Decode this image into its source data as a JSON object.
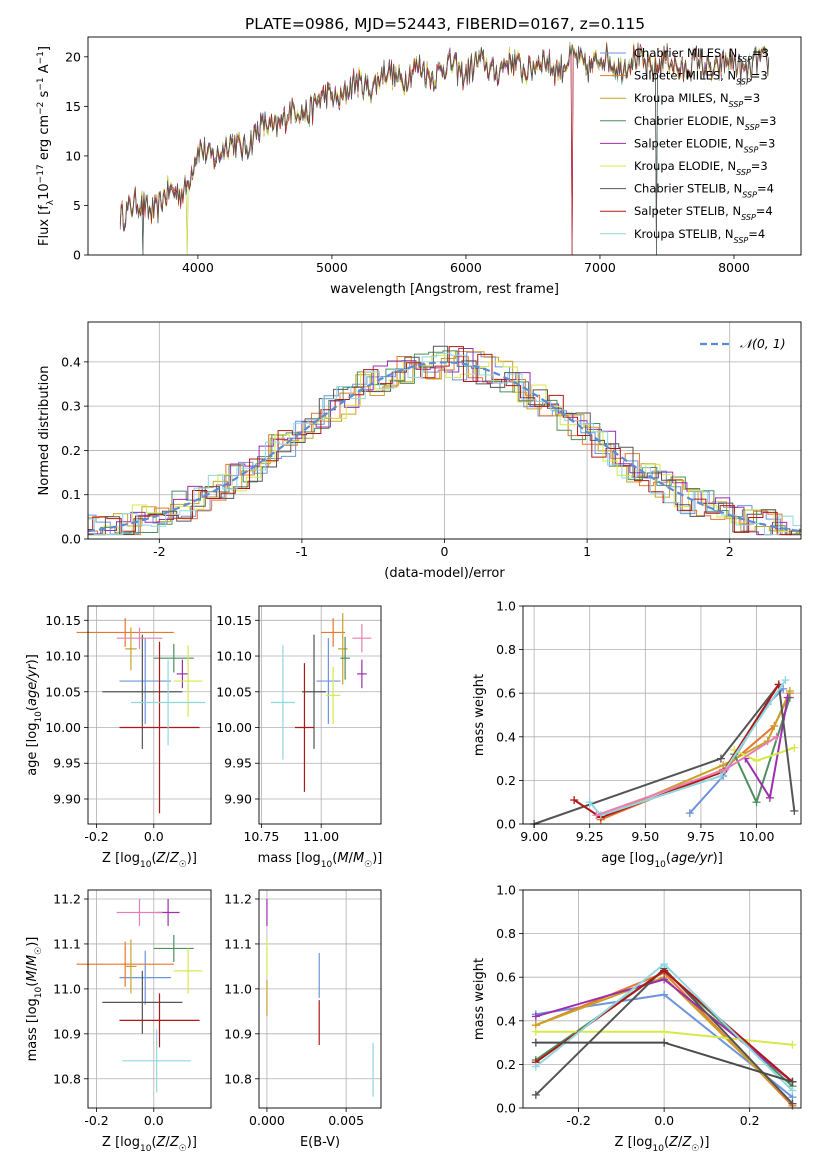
{
  "title": "PLATE=0986, MJD=52443, FIBERID=0167, z=0.115",
  "model_colors": [
    "#6f94dc",
    "#e8762d",
    "#c9a227",
    "#4f8f5f",
    "#9b2fae",
    "#d6e84a",
    "#555555",
    "#b01818",
    "#8fd8e0"
  ],
  "chart_data": [
    {
      "id": "spectrum",
      "type": "line",
      "title": "PLATE=0986, MJD=52443, FIBERID=0167, z=0.115",
      "xlabel": "wavelength [Angstrom, rest frame]",
      "ylabel": "Flux [f_λ 10⁻¹⁷ erg cm⁻² s⁻¹ A⁻¹]",
      "xlim": [
        3180,
        8500
      ],
      "ylim": [
        0,
        22
      ],
      "xticks": [
        4000,
        5000,
        6000,
        7000,
        8000
      ],
      "yticks": [
        0,
        5,
        10,
        15,
        20
      ],
      "grid": false,
      "legend": "top-right",
      "data_range": [
        3420,
        8260
      ],
      "continuum_shape": {
        "x": [
          3420,
          3700,
          3900,
          4000,
          4300,
          4600,
          5000,
          5400,
          5800,
          6200,
          6600,
          7000,
          7400,
          7800,
          8260
        ],
        "y": [
          4.5,
          5.0,
          7.0,
          10.0,
          11.0,
          13.5,
          16.0,
          18.0,
          18.7,
          19.0,
          19.2,
          19.5,
          19.3,
          19.0,
          19.2
        ]
      },
      "dropout_wavelengths": [
        3590,
        3920,
        6790,
        7420
      ],
      "series": [
        {
          "name": "Chabrier MILES, N_SSP=3",
          "main": "Chabrier MILES, N",
          "sub": "SSP",
          "suffix": "=3"
        },
        {
          "name": "Salpeter MILES, N_SSP=3",
          "main": "Salpeter MILES, N",
          "sub": "SSP",
          "suffix": "=3"
        },
        {
          "name": "Kroupa MILES, N_SSP=3",
          "main": "Kroupa MILES, N",
          "sub": "SSP",
          "suffix": "=3"
        },
        {
          "name": "Chabrier ELODIE, N_SSP=3",
          "main": "Chabrier ELODIE, N",
          "sub": "SSP",
          "suffix": "=3"
        },
        {
          "name": "Salpeter ELODIE, N_SSP=3",
          "main": "Salpeter ELODIE, N",
          "sub": "SSP",
          "suffix": "=3"
        },
        {
          "name": "Kroupa ELODIE, N_SSP=3",
          "main": "Kroupa ELODIE, N",
          "sub": "SSP",
          "suffix": "=3"
        },
        {
          "name": "Chabrier STELIB, N_SSP=4",
          "main": "Chabrier STELIB, N",
          "sub": "SSP",
          "suffix": "=4"
        },
        {
          "name": "Salpeter STELIB, N_SSP=4",
          "main": "Salpeter STELIB, N",
          "sub": "SSP",
          "suffix": "=4"
        },
        {
          "name": "Kroupa STELIB, N_SSP=4",
          "main": "Kroupa STELIB, N",
          "sub": "SSP",
          "suffix": "=4"
        }
      ]
    },
    {
      "id": "residuals",
      "type": "histogram",
      "xlabel": "(data-model)/error",
      "ylabel": "Normed distribution",
      "xlim": [
        -2.5,
        2.5
      ],
      "ylim": [
        0,
        0.49
      ],
      "xticks": [
        -2,
        -1,
        0,
        1,
        2
      ],
      "yticks": [
        0.0,
        0.1,
        0.2,
        0.3,
        0.4
      ],
      "grid": true,
      "legend": "top-right",
      "bin_width": 0.1,
      "reference_curve": {
        "name": "N(0,1)",
        "label": "𝒩(0, 1)",
        "mean": 0,
        "sigma": 1
      },
      "series_names": [
        "Chabrier MILES",
        "Salpeter MILES",
        "Kroupa MILES",
        "Chabrier ELODIE",
        "Salpeter ELODIE",
        "Kroupa ELODIE",
        "Chabrier STELIB",
        "Salpeter STELIB",
        "Kroupa STELIB"
      ]
    },
    {
      "id": "age_vs_Z",
      "type": "errorbar",
      "xlabel": "Z [log₁₀(Z/Z☉)]",
      "ylabel": "age [log₁₀(age/yr)]",
      "xlim": [
        -0.23,
        0.2
      ],
      "ylim": [
        9.865,
        10.17
      ],
      "xticks": [
        -0.2,
        0.0
      ],
      "yticks": [
        9.9,
        9.95,
        10.0,
        10.05,
        10.1,
        10.15
      ],
      "grid": true,
      "points": [
        {
          "x": -0.03,
          "xerr": 0.09,
          "y": 10.065,
          "yerr": 0.06
        },
        {
          "x": -0.1,
          "xerr": 0.17,
          "y": 10.133,
          "yerr": 0.02
        },
        {
          "x": -0.08,
          "xerr": 0.02,
          "y": 10.11,
          "yerr": 0.03
        },
        {
          "x": 0.07,
          "xerr": 0.07,
          "y": 10.097,
          "yerr": 0.02
        },
        {
          "x": 0.1,
          "xerr": 0.02,
          "y": 10.075,
          "yerr": 0.02
        },
        {
          "x": 0.12,
          "xerr": 0.05,
          "y": 10.065,
          "yerr": 0.05
        },
        {
          "x": -0.04,
          "xerr": 0.14,
          "y": 10.05,
          "yerr": 0.08
        },
        {
          "x": 0.02,
          "xerr": 0.14,
          "y": 10.0,
          "yerr": 0.12
        },
        {
          "x": 0.05,
          "xerr": 0.13,
          "y": 10.035,
          "yerr": 0.06
        },
        {
          "x": -0.05,
          "xerr": 0.08,
          "y": 10.125,
          "yerr": 0.015
        }
      ],
      "point_colors": [
        "#6f94dc",
        "#e8762d",
        "#c9a227",
        "#4f8f5f",
        "#9b2fae",
        "#d6e84a",
        "#555555",
        "#b01818",
        "#8fd8e0",
        "#e87fb4"
      ]
    },
    {
      "id": "age_vs_mass",
      "type": "errorbar",
      "xlabel": "mass [log₁₀(M/M☉)]",
      "xlim": [
        10.74,
        11.25
      ],
      "ylim": [
        9.865,
        10.17
      ],
      "xticks": [
        10.75,
        11.0
      ],
      "xticklabels": [
        "10.75",
        "11.00"
      ],
      "yticks": [
        9.9,
        9.95,
        10.0,
        10.05,
        10.1,
        10.15
      ],
      "grid": true,
      "points": [
        {
          "x": 11.03,
          "xerr": 0.05,
          "y": 10.065,
          "yerr": 0.06
        },
        {
          "x": 11.05,
          "xerr": 0.05,
          "y": 10.133,
          "yerr": 0.02
        },
        {
          "x": 11.09,
          "xerr": 0.02,
          "y": 10.11,
          "yerr": 0.05
        },
        {
          "x": 11.1,
          "xerr": 0.02,
          "y": 10.097,
          "yerr": 0.03
        },
        {
          "x": 11.17,
          "xerr": 0.02,
          "y": 10.075,
          "yerr": 0.02
        },
        {
          "x": 11.05,
          "xerr": 0.03,
          "y": 10.045,
          "yerr": 0.04
        },
        {
          "x": 10.97,
          "xerr": 0.05,
          "y": 10.05,
          "yerr": 0.08
        },
        {
          "x": 10.93,
          "xerr": 0.04,
          "y": 10.0,
          "yerr": 0.09
        },
        {
          "x": 10.84,
          "xerr": 0.05,
          "y": 10.035,
          "yerr": 0.08
        },
        {
          "x": 11.17,
          "xerr": 0.04,
          "y": 10.125,
          "yerr": 0.02
        }
      ],
      "point_colors": [
        "#6f94dc",
        "#e8762d",
        "#c9a227",
        "#4f8f5f",
        "#9b2fae",
        "#d6e84a",
        "#555555",
        "#b01818",
        "#8fd8e0",
        "#e87fb4"
      ]
    },
    {
      "id": "mass_weight_vs_age",
      "type": "line",
      "xlabel": "age [log₁₀(age/yr)]",
      "ylabel": "mass weight",
      "xlim": [
        8.95,
        10.2
      ],
      "ylim": [
        0.0,
        1.0
      ],
      "xticks": [
        9.0,
        9.25,
        9.5,
        9.75,
        10.0
      ],
      "xticklabels": [
        "9.00",
        "9.25",
        "9.50",
        "9.75",
        "10.00"
      ],
      "yticks": [
        0.0,
        0.2,
        0.4,
        0.6,
        0.8,
        1.0
      ],
      "grid": true,
      "series": [
        {
          "x": [
            9.7,
            9.85,
            10.05,
            10.12
          ],
          "y": [
            0.05,
            0.22,
            0.55,
            0.62
          ]
        },
        {
          "x": [
            9.3,
            9.85,
            10.08,
            10.15
          ],
          "y": [
            0.02,
            0.25,
            0.45,
            0.6
          ]
        },
        {
          "x": [
            9.3,
            9.85,
            10.05,
            10.15
          ],
          "y": [
            0.03,
            0.27,
            0.38,
            0.61
          ]
        },
        {
          "x": [
            9.9,
            10.0,
            10.15
          ],
          "y": [
            0.32,
            0.1,
            0.58
          ]
        },
        {
          "x": [
            9.95,
            10.06,
            10.14
          ],
          "y": [
            0.3,
            0.12,
            0.58
          ]
        },
        {
          "x": [
            9.9,
            10.0,
            10.17
          ],
          "y": [
            0.34,
            0.29,
            0.35
          ]
        },
        {
          "x": [
            9.0,
            9.84,
            10.1,
            10.17
          ],
          "y": [
            0.0,
            0.3,
            0.64,
            0.06
          ]
        },
        {
          "x": [
            9.18,
            9.3,
            9.85,
            10.1
          ],
          "y": [
            0.11,
            0.03,
            0.24,
            0.64
          ]
        },
        {
          "x": [
            9.25,
            9.3,
            9.84,
            10.13
          ],
          "y": [
            0.1,
            0.04,
            0.22,
            0.66
          ]
        },
        {
          "x": [
            9.28,
            9.86,
            10.09
          ],
          "y": [
            0.04,
            0.25,
            0.4
          ]
        }
      ],
      "series_colors": [
        "#6f94dc",
        "#e8762d",
        "#c9a227",
        "#4f8f5f",
        "#9b2fae",
        "#d6e84a",
        "#555555",
        "#b01818",
        "#8fd8e0",
        "#e87fb4"
      ]
    },
    {
      "id": "mass_vs_Z",
      "type": "errorbar",
      "xlabel": "Z [log₁₀(Z/Z☉)]",
      "ylabel": "mass [log₁₀(M/M☉)]",
      "xlim": [
        -0.23,
        0.2
      ],
      "ylim": [
        10.735,
        11.22
      ],
      "xticks": [
        -0.2,
        0.0
      ],
      "yticks": [
        10.8,
        10.9,
        11.0,
        11.1,
        11.2
      ],
      "grid": true,
      "points": [
        {
          "x": -0.03,
          "xerr": 0.09,
          "y": 11.025,
          "yerr": 0.06
        },
        {
          "x": -0.1,
          "xerr": 0.17,
          "y": 11.055,
          "yerr": 0.05
        },
        {
          "x": -0.08,
          "xerr": 0.02,
          "y": 11.05,
          "yerr": 0.06
        },
        {
          "x": 0.07,
          "xerr": 0.07,
          "y": 11.09,
          "yerr": 0.03
        },
        {
          "x": 0.05,
          "xerr": 0.04,
          "y": 11.17,
          "yerr": 0.03
        },
        {
          "x": 0.12,
          "xerr": 0.05,
          "y": 11.04,
          "yerr": 0.05
        },
        {
          "x": -0.04,
          "xerr": 0.14,
          "y": 10.97,
          "yerr": 0.07
        },
        {
          "x": 0.02,
          "xerr": 0.14,
          "y": 10.93,
          "yerr": 0.06
        },
        {
          "x": 0.01,
          "xerr": 0.12,
          "y": 10.84,
          "yerr": 0.07
        },
        {
          "x": -0.05,
          "xerr": 0.08,
          "y": 11.17,
          "yerr": 0.03
        }
      ],
      "point_colors": [
        "#6f94dc",
        "#e8762d",
        "#c9a227",
        "#4f8f5f",
        "#9b2fae",
        "#d6e84a",
        "#555555",
        "#b01818",
        "#8fd8e0",
        "#e87fb4"
      ]
    },
    {
      "id": "mass_vs_ebv",
      "type": "errorbar",
      "xlabel": "E(B-V)",
      "xlim": [
        -0.0005,
        0.0072
      ],
      "ylim": [
        10.735,
        11.22
      ],
      "xticks": [
        0.0,
        0.005
      ],
      "xticklabels": [
        "0.000",
        "0.005"
      ],
      "yticks": [
        10.8,
        10.9,
        11.0,
        11.1,
        11.2
      ],
      "grid": true,
      "points": [
        {
          "x": 0.0,
          "xerr": 0,
          "y": 11.17,
          "yerr": 0.03
        },
        {
          "x": 0.0,
          "xerr": 0,
          "y": 11.07,
          "yerr": 0.04
        },
        {
          "x": 0.0,
          "xerr": 0,
          "y": 10.98,
          "yerr": 0.04
        },
        {
          "x": 0.0033,
          "xerr": 0,
          "y": 11.03,
          "yerr": 0.05
        },
        {
          "x": 0.0033,
          "xerr": 0,
          "y": 10.925,
          "yerr": 0.05
        },
        {
          "x": 0.0067,
          "xerr": 0,
          "y": 10.82,
          "yerr": 0.06
        }
      ],
      "point_colors": [
        "#9b2fae",
        "#d6e84a",
        "#c9a227",
        "#6f94dc",
        "#b01818",
        "#8fd8e0"
      ]
    },
    {
      "id": "mass_weight_vs_Z",
      "type": "line",
      "xlabel": "Z [log₁₀(Z/Z☉)]",
      "ylabel": "mass weight",
      "xlim": [
        -0.33,
        0.32
      ],
      "ylim": [
        0.0,
        1.0
      ],
      "xticks": [
        -0.2,
        0.0,
        0.2
      ],
      "yticks": [
        0.0,
        0.2,
        0.4,
        0.6,
        0.8,
        1.0
      ],
      "grid": true,
      "series": [
        {
          "x": [
            -0.3,
            0.0,
            0.3
          ],
          "y": [
            0.43,
            0.52,
            0.05
          ]
        },
        {
          "x": [
            -0.3,
            0.0,
            0.3
          ],
          "y": [
            0.38,
            0.62,
            0.01
          ]
        },
        {
          "x": [
            -0.3,
            0.0,
            0.3
          ],
          "y": [
            0.38,
            0.6,
            0.02
          ]
        },
        {
          "x": [
            -0.3,
            0.0,
            0.3
          ],
          "y": [
            0.22,
            0.63,
            0.1
          ]
        },
        {
          "x": [
            -0.3,
            0.0,
            0.3
          ],
          "y": [
            0.42,
            0.59,
            0.12
          ]
        },
        {
          "x": [
            -0.3,
            0.0,
            0.3
          ],
          "y": [
            0.35,
            0.35,
            0.29
          ]
        },
        {
          "x": [
            -0.3,
            0.0,
            0.3
          ],
          "y": [
            0.06,
            0.64,
            0.02
          ]
        },
        {
          "x": [
            -0.3,
            0.0,
            0.3
          ],
          "y": [
            0.21,
            0.63,
            0.12
          ]
        },
        {
          "x": [
            -0.3,
            0.0,
            0.3
          ],
          "y": [
            0.19,
            0.66,
            0.08
          ]
        },
        {
          "x": [
            -0.3,
            0.0,
            0.3
          ],
          "y": [
            0.3,
            0.3,
            0.12
          ]
        }
      ],
      "series_colors": [
        "#6f94dc",
        "#e8762d",
        "#c9a227",
        "#4f8f5f",
        "#9b2fae",
        "#d6e84a",
        "#555555",
        "#b01818",
        "#8fd8e0",
        "#4b4b4b"
      ]
    }
  ]
}
